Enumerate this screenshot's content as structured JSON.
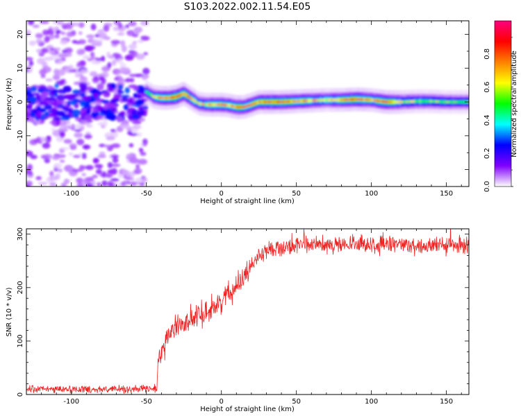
{
  "title": "S103.2022.002.11.54.E05",
  "chart_data": [
    {
      "type": "heatmap",
      "xlabel": "Height of straight line (km)",
      "ylabel": "Frequency (Hz)",
      "xlim": [
        -130,
        165
      ],
      "ylim": [
        -25,
        24
      ],
      "xticks": [
        -100,
        -50,
        0,
        50,
        100,
        150
      ],
      "yticks": [
        -20,
        -10,
        0,
        10,
        20
      ],
      "colorbar": {
        "label": "Normalized spectral amplitude",
        "range": [
          0,
          1
        ],
        "ticks": [
          "0.0",
          "0.2",
          "0.4",
          "0.6",
          "0.8"
        ],
        "colormap": "gist_rainbow_r",
        "colors": [
          "#ffffff",
          "#8000ff",
          "#0000ff",
          "#00ffff",
          "#00ff00",
          "#ffff00",
          "#ff8000",
          "#ff0000",
          "#ff0080"
        ]
      },
      "ridge": {
        "description_values": "peak frequency (Hz) vs height (km)",
        "x": [
          -50,
          -45,
          -40,
          -35,
          -30,
          -25,
          -20,
          -15,
          -10,
          -5,
          0,
          5,
          10,
          15,
          20,
          25,
          30,
          40,
          50,
          60,
          70,
          80,
          90,
          100,
          110,
          120,
          130,
          140,
          150,
          165
        ],
        "y": [
          3,
          1.5,
          1.2,
          1.2,
          1.5,
          2.5,
          1.0,
          -0.5,
          -0.8,
          -0.8,
          -0.8,
          -1.0,
          -1.5,
          -1.5,
          -0.8,
          0,
          0,
          0,
          0.2,
          0.4,
          0.6,
          0.6,
          0.8,
          0.6,
          0,
          0,
          0.2,
          0.2,
          0,
          0
        ],
        "peak_amplitude": [
          0.45,
          0.6,
          0.75,
          0.8,
          0.85,
          0.8,
          0.7,
          0.6,
          0.65,
          0.7,
          0.7,
          0.75,
          0.8,
          0.8,
          0.75,
          0.7,
          0.8,
          0.85,
          0.75,
          0.7,
          0.6,
          0.75,
          0.85,
          0.7,
          0.85,
          0.6,
          0.55,
          0.55,
          0.5,
          0.5
        ]
      },
      "noise_region": {
        "x_range": [
          -130,
          -50
        ],
        "y_range": [
          -25,
          24
        ],
        "core_band_hz": [
          -5,
          5
        ]
      }
    },
    {
      "type": "line",
      "xlabel": "Height of straight line (km)",
      "ylabel": "SNR (10 * v/v)",
      "xlim": [
        -130,
        165
      ],
      "ylim": [
        0,
        310
      ],
      "xticks": [
        -100,
        -50,
        0,
        50,
        100,
        150
      ],
      "yticks": [
        0,
        100,
        200,
        300
      ],
      "color": "#ee2222",
      "trend": {
        "x": [
          -130,
          -45,
          -43,
          -42,
          -40,
          -35,
          -30,
          -20,
          -10,
          0,
          10,
          20,
          25,
          30,
          40,
          50,
          60,
          80,
          100,
          120,
          140,
          160,
          165
        ],
        "y": [
          10,
          10,
          15,
          60,
          80,
          110,
          130,
          140,
          155,
          175,
          205,
          240,
          260,
          270,
          275,
          278,
          280,
          280,
          280,
          280,
          278,
          278,
          278
        ]
      },
      "noise_amplitude": {
        "x": [
          -130,
          -45,
          -42,
          0,
          30,
          100,
          165
        ],
        "y": [
          6,
          6,
          18,
          20,
          12,
          14,
          14
        ]
      }
    }
  ]
}
